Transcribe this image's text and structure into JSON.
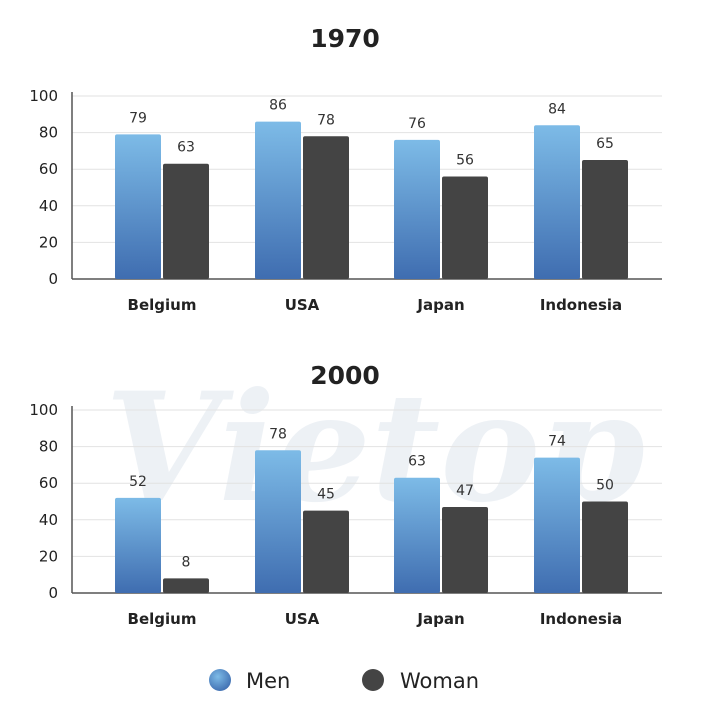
{
  "watermark": "Vietop",
  "colors": {
    "men_top": "#7dbbe7",
    "men_bottom": "#3f6db0",
    "woman": "#444444",
    "grid": "#e2e2e2",
    "axis": "#555555"
  },
  "legend": [
    {
      "label": "Men",
      "color": "men"
    },
    {
      "label": "Woman",
      "color": "woman"
    }
  ],
  "chart_data": [
    {
      "type": "bar",
      "title": "1970",
      "categories": [
        "Belgium",
        "USA",
        "Japan",
        "Indonesia"
      ],
      "series": [
        {
          "name": "Men",
          "values": [
            79,
            86,
            76,
            84
          ]
        },
        {
          "name": "Woman",
          "values": [
            63,
            78,
            56,
            65
          ]
        }
      ],
      "yticks": [
        0,
        20,
        40,
        60,
        80,
        100
      ],
      "ylim": [
        0,
        100
      ],
      "grid": true,
      "legend_position": "bottom"
    },
    {
      "type": "bar",
      "title": "2000",
      "categories": [
        "Belgium",
        "USA",
        "Japan",
        "Indonesia"
      ],
      "series": [
        {
          "name": "Men",
          "values": [
            52,
            78,
            63,
            74
          ]
        },
        {
          "name": "Woman",
          "values": [
            8,
            45,
            47,
            50
          ]
        }
      ],
      "yticks": [
        0,
        20,
        40,
        60,
        80,
        100
      ],
      "ylim": [
        0,
        100
      ],
      "grid": true,
      "legend_position": "bottom"
    }
  ]
}
